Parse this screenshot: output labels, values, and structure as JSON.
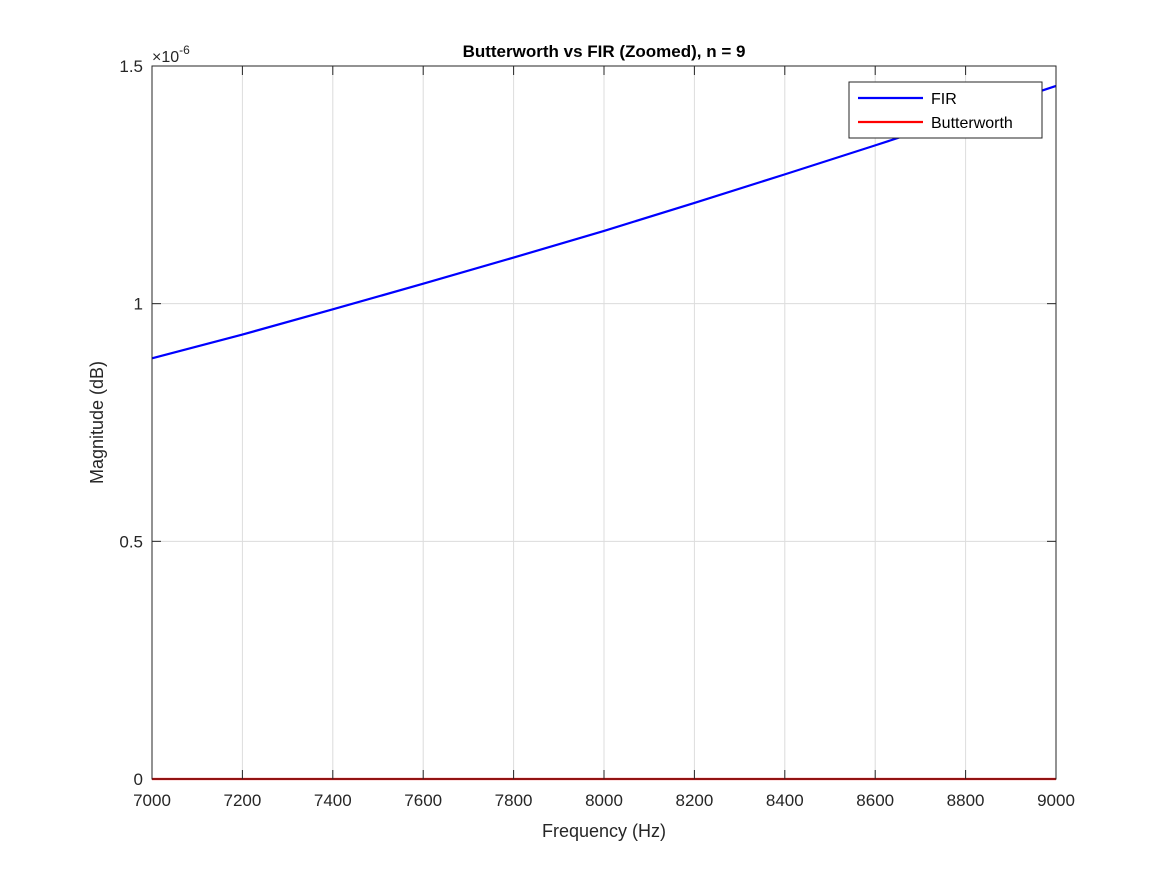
{
  "chart_data": {
    "type": "line",
    "title": "Butterworth vs FIR (Zoomed), n = 9",
    "xlabel": "Frequency (Hz)",
    "ylabel": "Magnitude (dB)",
    "xlim": [
      7000,
      9000
    ],
    "ylim": [
      0,
      1.5
    ],
    "y_exponent_label": "×10",
    "y_exponent_power": "-6",
    "x_ticks": [
      7000,
      7200,
      7400,
      7600,
      7800,
      8000,
      8200,
      8400,
      8600,
      8800,
      9000
    ],
    "x_tick_labels": [
      "7000",
      "7200",
      "7400",
      "7600",
      "7800",
      "8000",
      "8200",
      "8400",
      "8600",
      "8800",
      "9000"
    ],
    "y_ticks": [
      0,
      0.5,
      1,
      1.5
    ],
    "y_tick_labels": [
      "0",
      "0.5",
      "1",
      "1.5"
    ],
    "grid": true,
    "legend_position": "top-right",
    "series": [
      {
        "name": "FIR",
        "color": "#0000ff",
        "x": [
          7000,
          7200,
          7400,
          7600,
          7800,
          8000,
          8200,
          8400,
          8600,
          8800,
          9000
        ],
        "y": [
          0.885,
          0.935,
          0.988,
          1.042,
          1.097,
          1.153,
          1.212,
          1.272,
          1.333,
          1.395,
          1.458
        ]
      },
      {
        "name": "Butterworth",
        "color": "#ff0000",
        "x": [
          7000,
          9000
        ],
        "y": [
          0,
          0
        ]
      }
    ]
  }
}
